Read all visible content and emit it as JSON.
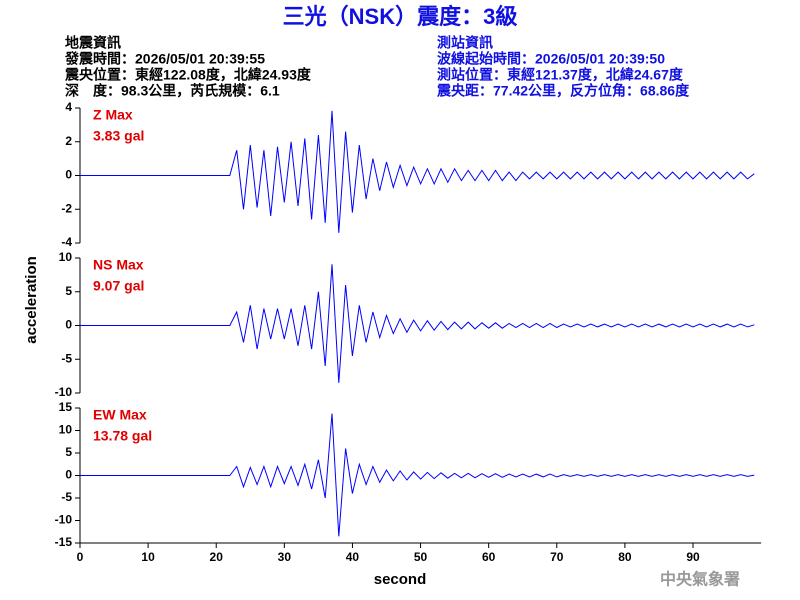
{
  "header": {
    "title": "三光（NSK）震度：3級",
    "left": [
      "地震資訊",
      "發震時間：2026/05/01 20:39:55",
      "震央位置：東經122.08度，北緯24.93度",
      "深　度：98.3公里，芮氏規模：6.1"
    ],
    "right": [
      "測站資訊",
      "波線起始時間：2026/05/01 20:39:50",
      "測站位置：東經121.37度，北緯24.67度",
      "震央距：77.42公里，反方位角：68.86度"
    ],
    "footer": "中央氣象署"
  },
  "axes": {
    "ylabel": "acceleration",
    "xlabel": "second"
  },
  "chart_data": [
    {
      "type": "line",
      "annotation": [
        "Z Max",
        "3.83 gal"
      ],
      "color": "#0000ff",
      "xlim": [
        0,
        100
      ],
      "ylim": [
        -4,
        4
      ],
      "yticks": [
        -4,
        -2,
        0,
        2,
        4
      ],
      "x": [
        0,
        1,
        2,
        3,
        4,
        5,
        6,
        7,
        8,
        9,
        10,
        11,
        12,
        13,
        14,
        15,
        16,
        17,
        18,
        19,
        20,
        21,
        22,
        23,
        24,
        25,
        26,
        27,
        28,
        29,
        30,
        31,
        32,
        33,
        34,
        35,
        36,
        37,
        38,
        39,
        40,
        41,
        42,
        43,
        44,
        45,
        46,
        47,
        48,
        49,
        50,
        51,
        52,
        53,
        54,
        55,
        56,
        57,
        58,
        59,
        60,
        61,
        62,
        63,
        64,
        65,
        66,
        67,
        68,
        69,
        70,
        71,
        72,
        73,
        74,
        75,
        76,
        77,
        78,
        79,
        80,
        81,
        82,
        83,
        84,
        85,
        86,
        87,
        88,
        89,
        90,
        91,
        92,
        93,
        94,
        95,
        96,
        97,
        98,
        99
      ],
      "values": [
        0,
        0,
        0,
        0,
        0,
        0,
        0,
        0,
        0,
        0,
        0,
        0,
        0,
        0,
        0,
        0,
        0,
        0,
        0,
        0,
        0,
        0,
        0,
        1.5,
        -2,
        1.8,
        -1.9,
        1.5,
        -2.4,
        1.7,
        -1.6,
        2,
        -1.8,
        2.2,
        -2.6,
        2.4,
        -2.8,
        3.83,
        -3.4,
        2.6,
        -2.2,
        1.8,
        -1.4,
        1,
        -0.9,
        0.8,
        -0.7,
        0.6,
        -0.6,
        0.5,
        -0.5,
        0.4,
        -0.5,
        0.4,
        -0.4,
        0.4,
        -0.3,
        0.3,
        -0.3,
        0.3,
        -0.3,
        0.3,
        -0.3,
        0.2,
        -0.3,
        0.2,
        -0.2,
        0.2,
        -0.2,
        0.2,
        -0.2,
        0.2,
        -0.2,
        0.2,
        -0.2,
        0.2,
        -0.2,
        0.2,
        -0.2,
        0.2,
        -0.2,
        0.2,
        -0.2,
        0.2,
        -0.2,
        0.2,
        -0.2,
        0.2,
        -0.2,
        0.2,
        -0.2,
        0.2,
        -0.2,
        0.2,
        -0.2,
        0.2,
        -0.2,
        0.2,
        -0.2,
        0.1
      ]
    },
    {
      "type": "line",
      "annotation": [
        "NS Max",
        "9.07 gal"
      ],
      "color": "#0000ff",
      "xlim": [
        0,
        100
      ],
      "ylim": [
        -10,
        10
      ],
      "yticks": [
        -10,
        -5,
        0,
        5,
        10
      ],
      "x": [
        0,
        1,
        2,
        3,
        4,
        5,
        6,
        7,
        8,
        9,
        10,
        11,
        12,
        13,
        14,
        15,
        16,
        17,
        18,
        19,
        20,
        21,
        22,
        23,
        24,
        25,
        26,
        27,
        28,
        29,
        30,
        31,
        32,
        33,
        34,
        35,
        36,
        37,
        38,
        39,
        40,
        41,
        42,
        43,
        44,
        45,
        46,
        47,
        48,
        49,
        50,
        51,
        52,
        53,
        54,
        55,
        56,
        57,
        58,
        59,
        60,
        61,
        62,
        63,
        64,
        65,
        66,
        67,
        68,
        69,
        70,
        71,
        72,
        73,
        74,
        75,
        76,
        77,
        78,
        79,
        80,
        81,
        82,
        83,
        84,
        85,
        86,
        87,
        88,
        89,
        90,
        91,
        92,
        93,
        94,
        95,
        96,
        97,
        98,
        99
      ],
      "values": [
        0,
        0,
        0,
        0,
        0,
        0,
        0,
        0,
        0,
        0,
        0,
        0,
        0,
        0,
        0,
        0,
        0,
        0,
        0,
        0,
        0,
        0,
        0,
        2,
        -2.5,
        3,
        -3.5,
        2.5,
        -2,
        2.5,
        -2,
        2.5,
        -3,
        3,
        -3.5,
        5,
        -6,
        9.07,
        -8.5,
        6,
        -4.5,
        3,
        -2.5,
        2,
        -1.8,
        1.5,
        -1.2,
        1,
        -1,
        0.8,
        -0.8,
        0.7,
        -0.7,
        0.6,
        -0.6,
        0.5,
        -0.5,
        0.5,
        -0.5,
        0.4,
        -0.4,
        0.4,
        -0.4,
        0.3,
        -0.3,
        0.3,
        -0.3,
        0.3,
        -0.3,
        0.3,
        -0.3,
        0.2,
        -0.2,
        0.2,
        -0.2,
        0.2,
        -0.2,
        0.2,
        -0.2,
        0.2,
        -0.2,
        0.2,
        -0.2,
        0.2,
        -0.2,
        0.2,
        -0.2,
        0.2,
        -0.2,
        0.2,
        -0.2,
        0.2,
        -0.2,
        0.2,
        -0.2,
        0.2,
        -0.2,
        0.2,
        -0.2,
        0.1
      ]
    },
    {
      "type": "line",
      "annotation": [
        "EW Max",
        "13.78 gal"
      ],
      "color": "#0000ff",
      "xlim": [
        0,
        100
      ],
      "ylim": [
        -15,
        15
      ],
      "yticks": [
        -15,
        -10,
        -5,
        0,
        5,
        10,
        15
      ],
      "xticks": [
        0,
        10,
        20,
        30,
        40,
        50,
        60,
        70,
        80,
        90
      ],
      "x": [
        0,
        1,
        2,
        3,
        4,
        5,
        6,
        7,
        8,
        9,
        10,
        11,
        12,
        13,
        14,
        15,
        16,
        17,
        18,
        19,
        20,
        21,
        22,
        23,
        24,
        25,
        26,
        27,
        28,
        29,
        30,
        31,
        32,
        33,
        34,
        35,
        36,
        37,
        38,
        39,
        40,
        41,
        42,
        43,
        44,
        45,
        46,
        47,
        48,
        49,
        50,
        51,
        52,
        53,
        54,
        55,
        56,
        57,
        58,
        59,
        60,
        61,
        62,
        63,
        64,
        65,
        66,
        67,
        68,
        69,
        70,
        71,
        72,
        73,
        74,
        75,
        76,
        77,
        78,
        79,
        80,
        81,
        82,
        83,
        84,
        85,
        86,
        87,
        88,
        89,
        90,
        91,
        92,
        93,
        94,
        95,
        96,
        97,
        98,
        99
      ],
      "values": [
        0,
        0,
        0,
        0,
        0,
        0,
        0,
        0,
        0,
        0,
        0,
        0,
        0,
        0,
        0,
        0,
        0,
        0,
        0,
        0,
        0,
        0,
        0,
        2,
        -2.5,
        1.8,
        -2,
        2,
        -2.5,
        2,
        -1.8,
        2,
        -2.2,
        2.5,
        -3,
        3.5,
        -5,
        13.78,
        -13.5,
        6,
        -4,
        2.5,
        -2,
        2,
        -1.5,
        1.2,
        -1.2,
        1,
        -1,
        0.8,
        -0.8,
        0.7,
        -0.7,
        0.6,
        -0.6,
        0.5,
        -0.5,
        0.5,
        -0.5,
        0.4,
        -0.4,
        0.4,
        -0.4,
        0.3,
        -0.3,
        0.3,
        -0.3,
        0.3,
        -0.3,
        0.3,
        -0.3,
        0.2,
        -0.2,
        0.2,
        -0.2,
        0.2,
        -0.2,
        0.2,
        -0.2,
        0.2,
        -0.2,
        0.2,
        -0.2,
        0.2,
        -0.2,
        0.2,
        -0.2,
        0.2,
        -0.2,
        0.2,
        -0.2,
        0.2,
        -0.2,
        0.2,
        -0.2,
        0.2,
        -0.2,
        0.2,
        -0.2,
        0.1
      ]
    }
  ]
}
